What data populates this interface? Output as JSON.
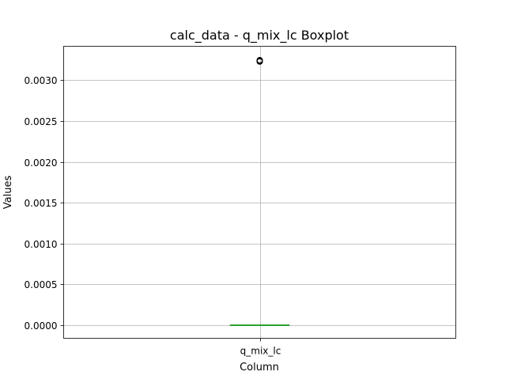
{
  "chart_data": {
    "type": "box",
    "title": "calc_data - q_mix_lc Boxplot",
    "xlabel": "Column",
    "ylabel": "Values",
    "categories": [
      "q_mix_lc"
    ],
    "ylim": [
      -0.00016,
      0.003415
    ],
    "yticks": [
      0.0,
      0.0005,
      0.001,
      0.0015,
      0.002,
      0.0025,
      0.003
    ],
    "ytick_labels": [
      "0.0000",
      "0.0005",
      "0.0010",
      "0.0015",
      "0.0020",
      "0.0025",
      "0.0030"
    ],
    "grid": true,
    "series": [
      {
        "name": "q_mix_lc",
        "q1": 0.0,
        "median": 0.0,
        "q3": 0.0,
        "whisker_low": 0.0,
        "whisker_high": 0.0,
        "outliers": [
          0.003245,
          0.003238,
          0.003232,
          0.003228
        ]
      }
    ]
  },
  "colors": {
    "box": "#000000",
    "median": "#2ca02c",
    "grid": "#b0b0b0",
    "axes": "#000000"
  }
}
